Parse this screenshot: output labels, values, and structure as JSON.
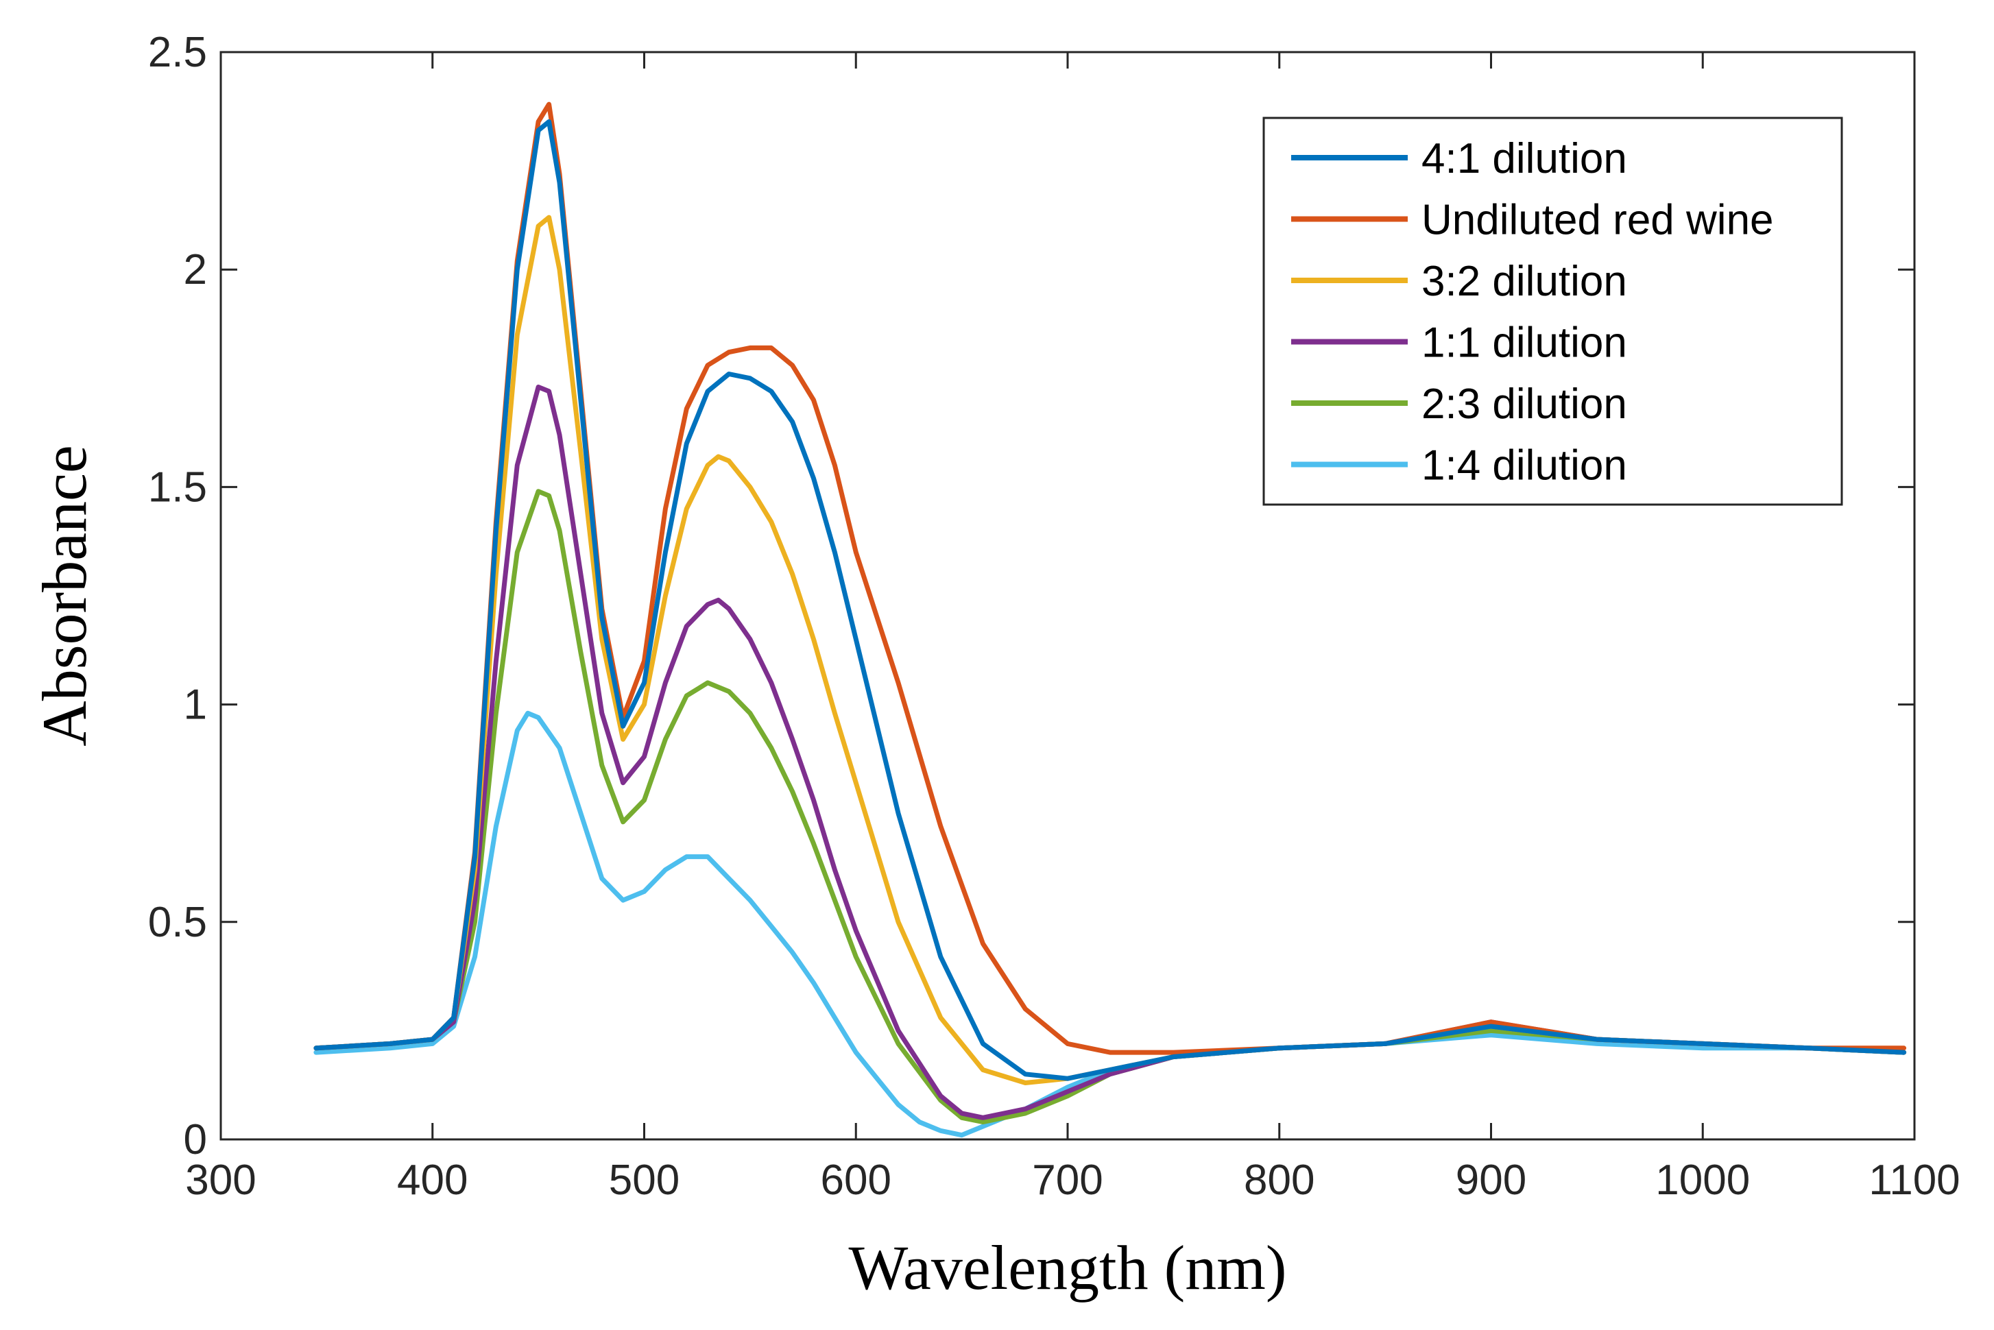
{
  "chart_data": {
    "type": "line",
    "title": "",
    "xlabel": "Wavelength (nm)",
    "ylabel": "Absorbance",
    "xlim": [
      300,
      1100
    ],
    "ylim": [
      0,
      2.5
    ],
    "xticks": [
      300,
      400,
      500,
      600,
      700,
      800,
      900,
      1000,
      1100
    ],
    "yticks": [
      0,
      0.5,
      1,
      1.5,
      2,
      2.5
    ],
    "xtick_labels": [
      "300",
      "400",
      "500",
      "600",
      "700",
      "800",
      "900",
      "1000",
      "1100"
    ],
    "ytick_labels": [
      "0",
      "0.5",
      "1",
      "1.5",
      "2",
      "2.5"
    ],
    "grid": false,
    "legend_position": "top-right",
    "series": [
      {
        "name": "4:1 dilution",
        "color": "#0072BD",
        "x": [
          345,
          380,
          400,
          410,
          420,
          430,
          440,
          450,
          455,
          460,
          470,
          480,
          490,
          500,
          510,
          520,
          530,
          540,
          550,
          560,
          570,
          580,
          590,
          600,
          620,
          640,
          660,
          680,
          700,
          720,
          750,
          800,
          850,
          900,
          950,
          1000,
          1050,
          1095
        ],
        "y": [
          0.21,
          0.22,
          0.23,
          0.28,
          0.65,
          1.4,
          2.0,
          2.32,
          2.34,
          2.2,
          1.7,
          1.2,
          0.95,
          1.05,
          1.35,
          1.6,
          1.72,
          1.76,
          1.75,
          1.72,
          1.65,
          1.52,
          1.35,
          1.15,
          0.75,
          0.42,
          0.22,
          0.15,
          0.14,
          0.16,
          0.19,
          0.21,
          0.22,
          0.26,
          0.23,
          0.22,
          0.21,
          0.2
        ]
      },
      {
        "name": "Undiluted red wine",
        "color": "#D95319",
        "x": [
          345,
          380,
          400,
          410,
          420,
          430,
          440,
          450,
          455,
          460,
          470,
          480,
          490,
          500,
          510,
          520,
          530,
          540,
          550,
          560,
          570,
          580,
          590,
          600,
          610,
          620,
          640,
          660,
          680,
          700,
          720,
          750,
          800,
          850,
          900,
          950,
          1000,
          1050,
          1095
        ],
        "y": [
          0.21,
          0.22,
          0.23,
          0.28,
          0.66,
          1.42,
          2.02,
          2.34,
          2.38,
          2.22,
          1.72,
          1.22,
          0.97,
          1.1,
          1.45,
          1.68,
          1.78,
          1.81,
          1.82,
          1.82,
          1.78,
          1.7,
          1.55,
          1.35,
          1.2,
          1.05,
          0.72,
          0.45,
          0.3,
          0.22,
          0.2,
          0.2,
          0.21,
          0.22,
          0.27,
          0.23,
          0.22,
          0.21,
          0.21
        ]
      },
      {
        "name": "3:2 dilution",
        "color": "#EDB120",
        "x": [
          345,
          380,
          400,
          410,
          420,
          430,
          440,
          450,
          455,
          460,
          470,
          480,
          490,
          500,
          510,
          520,
          530,
          535,
          540,
          550,
          560,
          570,
          580,
          590,
          600,
          620,
          640,
          660,
          680,
          700,
          720,
          750,
          800,
          850,
          900,
          950,
          1000,
          1050,
          1095
        ],
        "y": [
          0.21,
          0.22,
          0.23,
          0.28,
          0.62,
          1.3,
          1.85,
          2.1,
          2.12,
          2.0,
          1.58,
          1.15,
          0.92,
          1.0,
          1.25,
          1.45,
          1.55,
          1.57,
          1.56,
          1.5,
          1.42,
          1.3,
          1.15,
          0.98,
          0.82,
          0.5,
          0.28,
          0.16,
          0.13,
          0.14,
          0.16,
          0.19,
          0.21,
          0.22,
          0.26,
          0.23,
          0.22,
          0.21,
          0.2
        ]
      },
      {
        "name": "1:1 dilution",
        "color": "#7E2F8E",
        "x": [
          345,
          380,
          400,
          410,
          420,
          430,
          440,
          450,
          455,
          460,
          470,
          480,
          490,
          500,
          510,
          520,
          530,
          535,
          540,
          550,
          560,
          570,
          580,
          590,
          600,
          620,
          640,
          650,
          660,
          680,
          700,
          720,
          750,
          800,
          850,
          900,
          950,
          1000,
          1050,
          1095
        ],
        "y": [
          0.21,
          0.22,
          0.23,
          0.27,
          0.55,
          1.1,
          1.55,
          1.73,
          1.72,
          1.62,
          1.3,
          0.98,
          0.82,
          0.88,
          1.05,
          1.18,
          1.23,
          1.24,
          1.22,
          1.15,
          1.05,
          0.92,
          0.78,
          0.62,
          0.48,
          0.25,
          0.1,
          0.06,
          0.05,
          0.07,
          0.11,
          0.15,
          0.19,
          0.21,
          0.22,
          0.27,
          0.23,
          0.22,
          0.21,
          0.2
        ]
      },
      {
        "name": "2:3 dilution",
        "color": "#77AC30",
        "x": [
          345,
          380,
          400,
          410,
          420,
          430,
          440,
          450,
          455,
          460,
          470,
          480,
          490,
          500,
          510,
          520,
          530,
          540,
          550,
          560,
          570,
          580,
          590,
          600,
          620,
          640,
          650,
          660,
          680,
          700,
          720,
          750,
          800,
          850,
          900,
          950,
          1000,
          1050,
          1095
        ],
        "y": [
          0.21,
          0.22,
          0.23,
          0.27,
          0.5,
          0.98,
          1.35,
          1.49,
          1.48,
          1.4,
          1.12,
          0.86,
          0.73,
          0.78,
          0.92,
          1.02,
          1.05,
          1.03,
          0.98,
          0.9,
          0.8,
          0.68,
          0.55,
          0.42,
          0.22,
          0.09,
          0.05,
          0.04,
          0.06,
          0.1,
          0.15,
          0.19,
          0.21,
          0.22,
          0.25,
          0.23,
          0.22,
          0.21,
          0.2
        ]
      },
      {
        "name": "1:4 dilution",
        "color": "#4DBEEE",
        "x": [
          345,
          380,
          400,
          410,
          420,
          430,
          440,
          445,
          450,
          460,
          470,
          480,
          490,
          500,
          510,
          520,
          530,
          540,
          550,
          560,
          570,
          580,
          590,
          600,
          610,
          620,
          630,
          640,
          650,
          660,
          680,
          700,
          720,
          750,
          800,
          850,
          900,
          950,
          1000,
          1050,
          1095
        ],
        "y": [
          0.2,
          0.21,
          0.22,
          0.26,
          0.42,
          0.72,
          0.94,
          0.98,
          0.97,
          0.9,
          0.75,
          0.6,
          0.55,
          0.57,
          0.62,
          0.65,
          0.65,
          0.6,
          0.55,
          0.49,
          0.43,
          0.36,
          0.28,
          0.2,
          0.14,
          0.08,
          0.04,
          0.02,
          0.01,
          0.03,
          0.07,
          0.12,
          0.16,
          0.19,
          0.21,
          0.22,
          0.24,
          0.22,
          0.21,
          0.21,
          0.2
        ]
      }
    ]
  }
}
